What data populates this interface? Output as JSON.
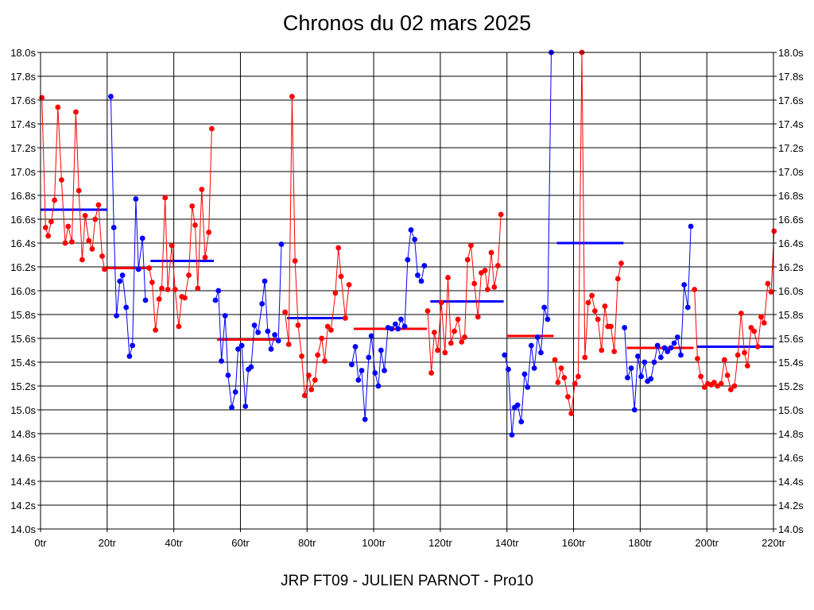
{
  "chart_data": {
    "type": "line",
    "title": "Chronos du 02 mars 2025",
    "footer": "JRP FT09 - JULIEN PARNOT - Pro10",
    "xlim": [
      0,
      220
    ],
    "ylim": [
      14.0,
      18.0
    ],
    "x_ticks": [
      0,
      20,
      40,
      60,
      80,
      100,
      120,
      140,
      160,
      180,
      200,
      220
    ],
    "x_tick_labels": [
      "0tr",
      "20tr",
      "40tr",
      "60tr",
      "80tr",
      "100tr",
      "120tr",
      "140tr",
      "160tr",
      "180tr",
      "200tr",
      "220tr"
    ],
    "y_ticks": [
      14.0,
      14.2,
      14.4,
      14.6,
      14.8,
      15.0,
      15.2,
      15.4,
      15.6,
      15.8,
      16.0,
      16.2,
      16.4,
      16.6,
      16.8,
      17.0,
      17.2,
      17.4,
      17.6,
      17.8,
      18.0
    ],
    "y_tick_labels": [
      "14.0s",
      "14.2s",
      "14.4s",
      "14.6s",
      "14.8s",
      "15.0s",
      "15.2s",
      "15.4s",
      "15.6s",
      "15.8s",
      "16.0s",
      "16.2s",
      "16.4s",
      "16.6s",
      "16.8s",
      "17.0s",
      "17.2s",
      "17.4s",
      "17.6s",
      "17.8s",
      "18.0s"
    ],
    "grid": true,
    "colors": {
      "red": "#ff0000",
      "blue": "#0000ff"
    },
    "series": [
      {
        "color": "#ff0000",
        "points": [
          [
            0.4,
            17.62
          ],
          [
            1.5,
            16.53
          ],
          [
            2.3,
            16.46
          ],
          [
            3.2,
            16.58
          ],
          [
            4.2,
            16.76
          ],
          [
            5.2,
            17.54
          ],
          [
            6.3,
            16.93
          ],
          [
            7.4,
            16.4
          ],
          [
            8.3,
            16.54
          ],
          [
            9.4,
            16.41
          ],
          [
            10.6,
            17.5
          ],
          [
            11.5,
            16.84
          ],
          [
            12.5,
            16.26
          ],
          [
            13.4,
            16.63
          ],
          [
            14.5,
            16.42
          ],
          [
            15.5,
            16.35
          ],
          [
            16.4,
            16.6
          ],
          [
            17.4,
            16.72
          ],
          [
            18.5,
            16.29
          ],
          [
            19.2,
            16.18
          ]
        ]
      },
      {
        "color": "#0000ff",
        "points": [
          [
            21.1,
            17.63
          ],
          [
            22.0,
            16.53
          ],
          [
            22.8,
            15.79
          ],
          [
            23.8,
            16.08
          ],
          [
            24.6,
            16.13
          ],
          [
            25.7,
            15.86
          ],
          [
            26.7,
            15.45
          ],
          [
            27.6,
            15.54
          ],
          [
            28.6,
            16.77
          ],
          [
            29.4,
            16.18
          ],
          [
            30.6,
            16.44
          ],
          [
            31.5,
            15.92
          ]
        ]
      },
      {
        "color": "#ff0000",
        "points": [
          [
            32.6,
            16.19
          ],
          [
            33.5,
            16.07
          ],
          [
            34.5,
            15.67
          ],
          [
            35.6,
            15.93
          ],
          [
            36.4,
            16.02
          ],
          [
            37.4,
            16.78
          ],
          [
            38.2,
            16.01
          ],
          [
            39.4,
            16.38
          ],
          [
            40.4,
            16.01
          ],
          [
            41.5,
            15.7
          ],
          [
            42.4,
            15.95
          ],
          [
            43.3,
            15.94
          ],
          [
            44.5,
            16.13
          ],
          [
            45.5,
            16.71
          ],
          [
            46.4,
            16.55
          ],
          [
            47.2,
            16.02
          ],
          [
            48.4,
            16.85
          ],
          [
            49.4,
            16.28
          ],
          [
            50.5,
            16.49
          ],
          [
            51.4,
            17.36
          ]
        ]
      },
      {
        "color": "#0000ff",
        "points": [
          [
            52.5,
            15.92
          ],
          [
            53.4,
            16.0
          ],
          [
            54.3,
            15.41
          ],
          [
            55.4,
            15.79
          ],
          [
            56.3,
            15.29
          ],
          [
            57.4,
            15.02
          ],
          [
            58.5,
            15.15
          ],
          [
            59.3,
            15.51
          ],
          [
            60.4,
            15.54
          ],
          [
            61.5,
            15.03
          ],
          [
            62.4,
            15.34
          ],
          [
            63.2,
            15.36
          ],
          [
            64.2,
            15.71
          ],
          [
            65.3,
            15.65
          ],
          [
            66.5,
            15.89
          ],
          [
            67.3,
            16.08
          ],
          [
            68.2,
            15.66
          ],
          [
            69.2,
            15.51
          ],
          [
            70.3,
            15.63
          ],
          [
            71.4,
            15.58
          ],
          [
            72.3,
            16.39
          ]
        ]
      },
      {
        "color": "#ff0000",
        "points": [
          [
            73.4,
            15.82
          ],
          [
            74.5,
            15.55
          ],
          [
            75.5,
            17.63
          ],
          [
            76.4,
            16.25
          ],
          [
            77.3,
            15.71
          ],
          [
            78.4,
            15.45
          ],
          [
            79.3,
            15.12
          ],
          [
            80.5,
            15.29
          ],
          [
            81.3,
            15.17
          ],
          [
            82.4,
            15.25
          ],
          [
            83.2,
            15.46
          ],
          [
            84.4,
            15.6
          ],
          [
            85.3,
            15.41
          ],
          [
            86.2,
            15.7
          ],
          [
            87.2,
            15.67
          ],
          [
            88.5,
            15.98
          ],
          [
            89.4,
            16.36
          ],
          [
            90.2,
            16.12
          ],
          [
            91.5,
            15.77
          ],
          [
            92.6,
            16.05
          ]
        ]
      },
      {
        "color": "#0000ff",
        "points": [
          [
            93.4,
            15.38
          ],
          [
            94.5,
            15.53
          ],
          [
            95.4,
            15.25
          ],
          [
            96.4,
            15.33
          ],
          [
            97.4,
            14.92
          ],
          [
            98.5,
            15.44
          ],
          [
            99.3,
            15.62
          ],
          [
            100.4,
            15.31
          ],
          [
            101.4,
            15.2
          ],
          [
            102.2,
            15.5
          ],
          [
            103.2,
            15.33
          ],
          [
            104.3,
            15.69
          ],
          [
            105.4,
            15.68
          ],
          [
            106.5,
            15.72
          ],
          [
            107.3,
            15.68
          ],
          [
            108.2,
            15.76
          ],
          [
            109.3,
            15.7
          ],
          [
            110.2,
            16.26
          ],
          [
            111.2,
            16.51
          ],
          [
            112.3,
            16.43
          ],
          [
            113.2,
            16.13
          ],
          [
            114.3,
            16.08
          ],
          [
            115.2,
            16.21
          ]
        ]
      },
      {
        "color": "#ff0000",
        "points": [
          [
            116.2,
            15.83
          ],
          [
            117.3,
            15.31
          ],
          [
            118.2,
            15.65
          ],
          [
            119.2,
            15.5
          ],
          [
            120.3,
            15.9
          ],
          [
            121.4,
            15.48
          ],
          [
            122.3,
            16.11
          ],
          [
            123.2,
            15.56
          ],
          [
            124.2,
            15.66
          ],
          [
            125.3,
            15.76
          ],
          [
            126.4,
            15.57
          ],
          [
            127.3,
            15.61
          ],
          [
            128.2,
            16.26
          ],
          [
            129.2,
            16.38
          ],
          [
            130.2,
            16.06
          ],
          [
            131.3,
            15.78
          ],
          [
            132.3,
            16.15
          ],
          [
            133.4,
            16.17
          ],
          [
            134.2,
            16.01
          ],
          [
            135.3,
            16.32
          ],
          [
            136.2,
            16.03
          ],
          [
            137.3,
            16.21
          ],
          [
            138.2,
            16.64
          ]
        ]
      },
      {
        "color": "#0000ff",
        "points": [
          [
            139.3,
            15.46
          ],
          [
            140.4,
            15.34
          ],
          [
            141.5,
            14.79
          ],
          [
            142.3,
            15.02
          ],
          [
            143.2,
            15.04
          ],
          [
            144.3,
            14.9
          ],
          [
            145.3,
            15.3
          ],
          [
            146.2,
            15.19
          ],
          [
            147.3,
            15.54
          ],
          [
            148.2,
            15.35
          ],
          [
            149.2,
            15.61
          ],
          [
            150.2,
            15.48
          ],
          [
            151.2,
            15.86
          ],
          [
            152.2,
            15.76
          ],
          [
            153.3,
            18.0
          ]
        ]
      },
      {
        "color": "#ff0000",
        "points": [
          [
            154.4,
            15.42
          ],
          [
            155.3,
            15.23
          ],
          [
            156.3,
            15.35
          ],
          [
            157.2,
            15.27
          ],
          [
            158.3,
            15.11
          ],
          [
            159.3,
            14.97
          ],
          [
            160.4,
            15.22
          ],
          [
            161.4,
            15.28
          ],
          [
            162.5,
            18.0
          ],
          [
            163.4,
            15.44
          ],
          [
            164.4,
            15.9
          ],
          [
            165.5,
            15.96
          ],
          [
            166.4,
            15.83
          ],
          [
            167.3,
            15.76
          ],
          [
            168.4,
            15.5
          ],
          [
            169.4,
            15.87
          ],
          [
            170.3,
            15.7
          ],
          [
            171.2,
            15.7
          ],
          [
            172.2,
            15.49
          ],
          [
            173.3,
            16.1
          ],
          [
            174.3,
            16.23
          ]
        ]
      },
      {
        "color": "#0000ff",
        "points": [
          [
            175.3,
            15.69
          ],
          [
            176.2,
            15.27
          ],
          [
            177.3,
            15.35
          ],
          [
            178.3,
            15.0
          ],
          [
            179.3,
            15.45
          ],
          [
            180.3,
            15.28
          ],
          [
            181.3,
            15.4
          ],
          [
            182.2,
            15.24
          ],
          [
            183.2,
            15.26
          ],
          [
            184.2,
            15.4
          ],
          [
            185.2,
            15.54
          ],
          [
            186.2,
            15.44
          ],
          [
            187.3,
            15.52
          ],
          [
            188.2,
            15.49
          ],
          [
            189.2,
            15.52
          ],
          [
            190.2,
            15.56
          ],
          [
            191.2,
            15.61
          ],
          [
            192.2,
            15.46
          ],
          [
            193.2,
            16.05
          ],
          [
            194.3,
            15.86
          ],
          [
            195.2,
            16.54
          ]
        ]
      },
      {
        "color": "#ff0000",
        "points": [
          [
            196.3,
            16.01
          ],
          [
            197.2,
            15.43
          ],
          [
            198.2,
            15.28
          ],
          [
            199.3,
            15.19
          ],
          [
            200.3,
            15.22
          ],
          [
            201.3,
            15.21
          ],
          [
            202.2,
            15.23
          ],
          [
            203.2,
            15.2
          ],
          [
            204.3,
            15.22
          ],
          [
            205.3,
            15.42
          ],
          [
            206.2,
            15.29
          ],
          [
            207.2,
            15.17
          ],
          [
            208.3,
            15.2
          ],
          [
            209.3,
            15.46
          ],
          [
            210.3,
            15.81
          ],
          [
            211.3,
            15.48
          ],
          [
            212.2,
            15.37
          ],
          [
            213.3,
            15.69
          ],
          [
            214.2,
            15.66
          ],
          [
            215.3,
            15.53
          ],
          [
            216.3,
            15.78
          ],
          [
            217.2,
            15.73
          ],
          [
            218.3,
            16.06
          ],
          [
            219.3,
            15.99
          ],
          [
            220.2,
            16.5
          ]
        ]
      }
    ],
    "averages": [
      {
        "color": "#0000ff",
        "x": [
          0,
          20
        ],
        "y": 16.68
      },
      {
        "color": "#ff0000",
        "x": [
          20,
          32
        ],
        "y": 16.19
      },
      {
        "color": "#0000ff",
        "x": [
          33,
          52
        ],
        "y": 16.25
      },
      {
        "color": "#ff0000",
        "x": [
          53,
          72
        ],
        "y": 15.59
      },
      {
        "color": "#0000ff",
        "x": [
          74,
          92
        ],
        "y": 15.77
      },
      {
        "color": "#ff0000",
        "x": [
          94,
          116
        ],
        "y": 15.68
      },
      {
        "color": "#0000ff",
        "x": [
          117,
          139
        ],
        "y": 15.91
      },
      {
        "color": "#ff0000",
        "x": [
          140,
          154
        ],
        "y": 15.62
      },
      {
        "color": "#0000ff",
        "x": [
          155,
          175
        ],
        "y": 16.4
      },
      {
        "color": "#ff0000",
        "x": [
          176,
          196
        ],
        "y": 15.52
      },
      {
        "color": "#0000ff",
        "x": [
          197,
          220
        ],
        "y": 15.53
      }
    ]
  }
}
